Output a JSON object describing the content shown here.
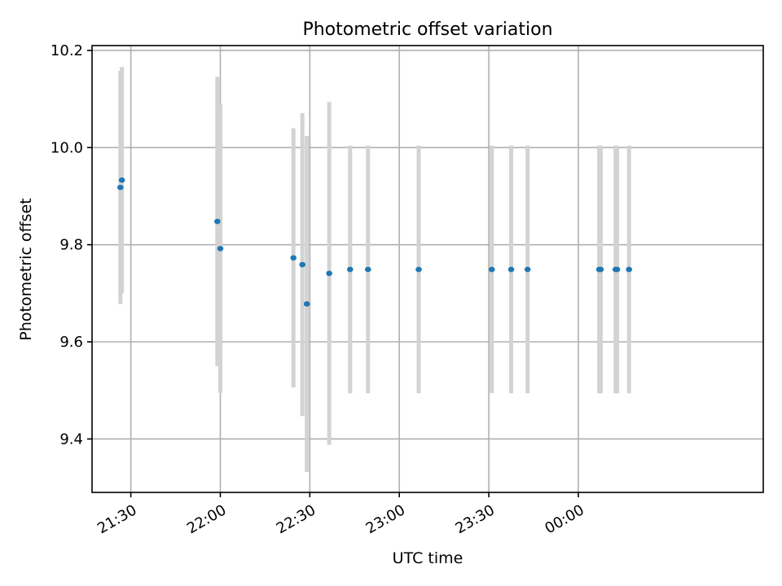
{
  "chart_data": {
    "type": "scatter",
    "title": "Photometric offset variation",
    "xlabel": "UTC time",
    "ylabel": "Photometric offset",
    "xlim": [
      "21:17",
      "01:02"
    ],
    "ylim": [
      9.29,
      10.21
    ],
    "xticks": [
      "21:30",
      "22:00",
      "22:30",
      "23:00",
      "23:30",
      "00:00"
    ],
    "yticks": [
      9.4,
      9.6,
      9.8,
      10.0,
      10.2
    ],
    "ytick_labels": [
      "9.4",
      "9.6",
      "9.8",
      "10.0",
      "10.2"
    ],
    "grid": true,
    "colors": {
      "points": "#1f77b4",
      "error_bars": "#d3d3d3"
    },
    "points": [
      {
        "time": "21:26.5",
        "y": 9.918,
        "ylow": 9.678,
        "yhigh": 10.158
      },
      {
        "time": "21:27.0",
        "y": 9.933,
        "ylow": 9.7,
        "yhigh": 10.166
      },
      {
        "time": "21:59.0",
        "y": 9.848,
        "ylow": 9.55,
        "yhigh": 10.146
      },
      {
        "time": "22:00.0",
        "y": 9.792,
        "ylow": 9.495,
        "yhigh": 10.089
      },
      {
        "time": "22:24.5",
        "y": 9.773,
        "ylow": 9.506,
        "yhigh": 10.04
      },
      {
        "time": "22:27.5",
        "y": 9.759,
        "ylow": 9.447,
        "yhigh": 10.071
      },
      {
        "time": "22:29.0",
        "y": 9.678,
        "ylow": 9.332,
        "yhigh": 10.024
      },
      {
        "time": "22:36.5",
        "y": 9.741,
        "ylow": 9.388,
        "yhigh": 10.094
      },
      {
        "time": "22:43.5",
        "y": 9.749,
        "ylow": 9.494,
        "yhigh": 10.004
      },
      {
        "time": "22:49.5",
        "y": 9.749,
        "ylow": 9.494,
        "yhigh": 10.004
      },
      {
        "time": "23:06.5",
        "y": 9.749,
        "ylow": 9.494,
        "yhigh": 10.004
      },
      {
        "time": "23:31.0",
        "y": 9.749,
        "ylow": 9.494,
        "yhigh": 10.004
      },
      {
        "time": "23:37.5",
        "y": 9.749,
        "ylow": 9.494,
        "yhigh": 10.004
      },
      {
        "time": "23:43.0",
        "y": 9.749,
        "ylow": 9.494,
        "yhigh": 10.004
      },
      {
        "time": "00:07.0",
        "y": 9.749,
        "ylow": 9.494,
        "yhigh": 10.004
      },
      {
        "time": "00:07.5",
        "y": 9.749,
        "ylow": 9.494,
        "yhigh": 10.004
      },
      {
        "time": "00:12.5",
        "y": 9.749,
        "ylow": 9.494,
        "yhigh": 10.004
      },
      {
        "time": "00:13.0",
        "y": 9.749,
        "ylow": 9.494,
        "yhigh": 10.004
      },
      {
        "time": "00:17.0",
        "y": 9.749,
        "ylow": 9.494,
        "yhigh": 10.004
      }
    ]
  }
}
